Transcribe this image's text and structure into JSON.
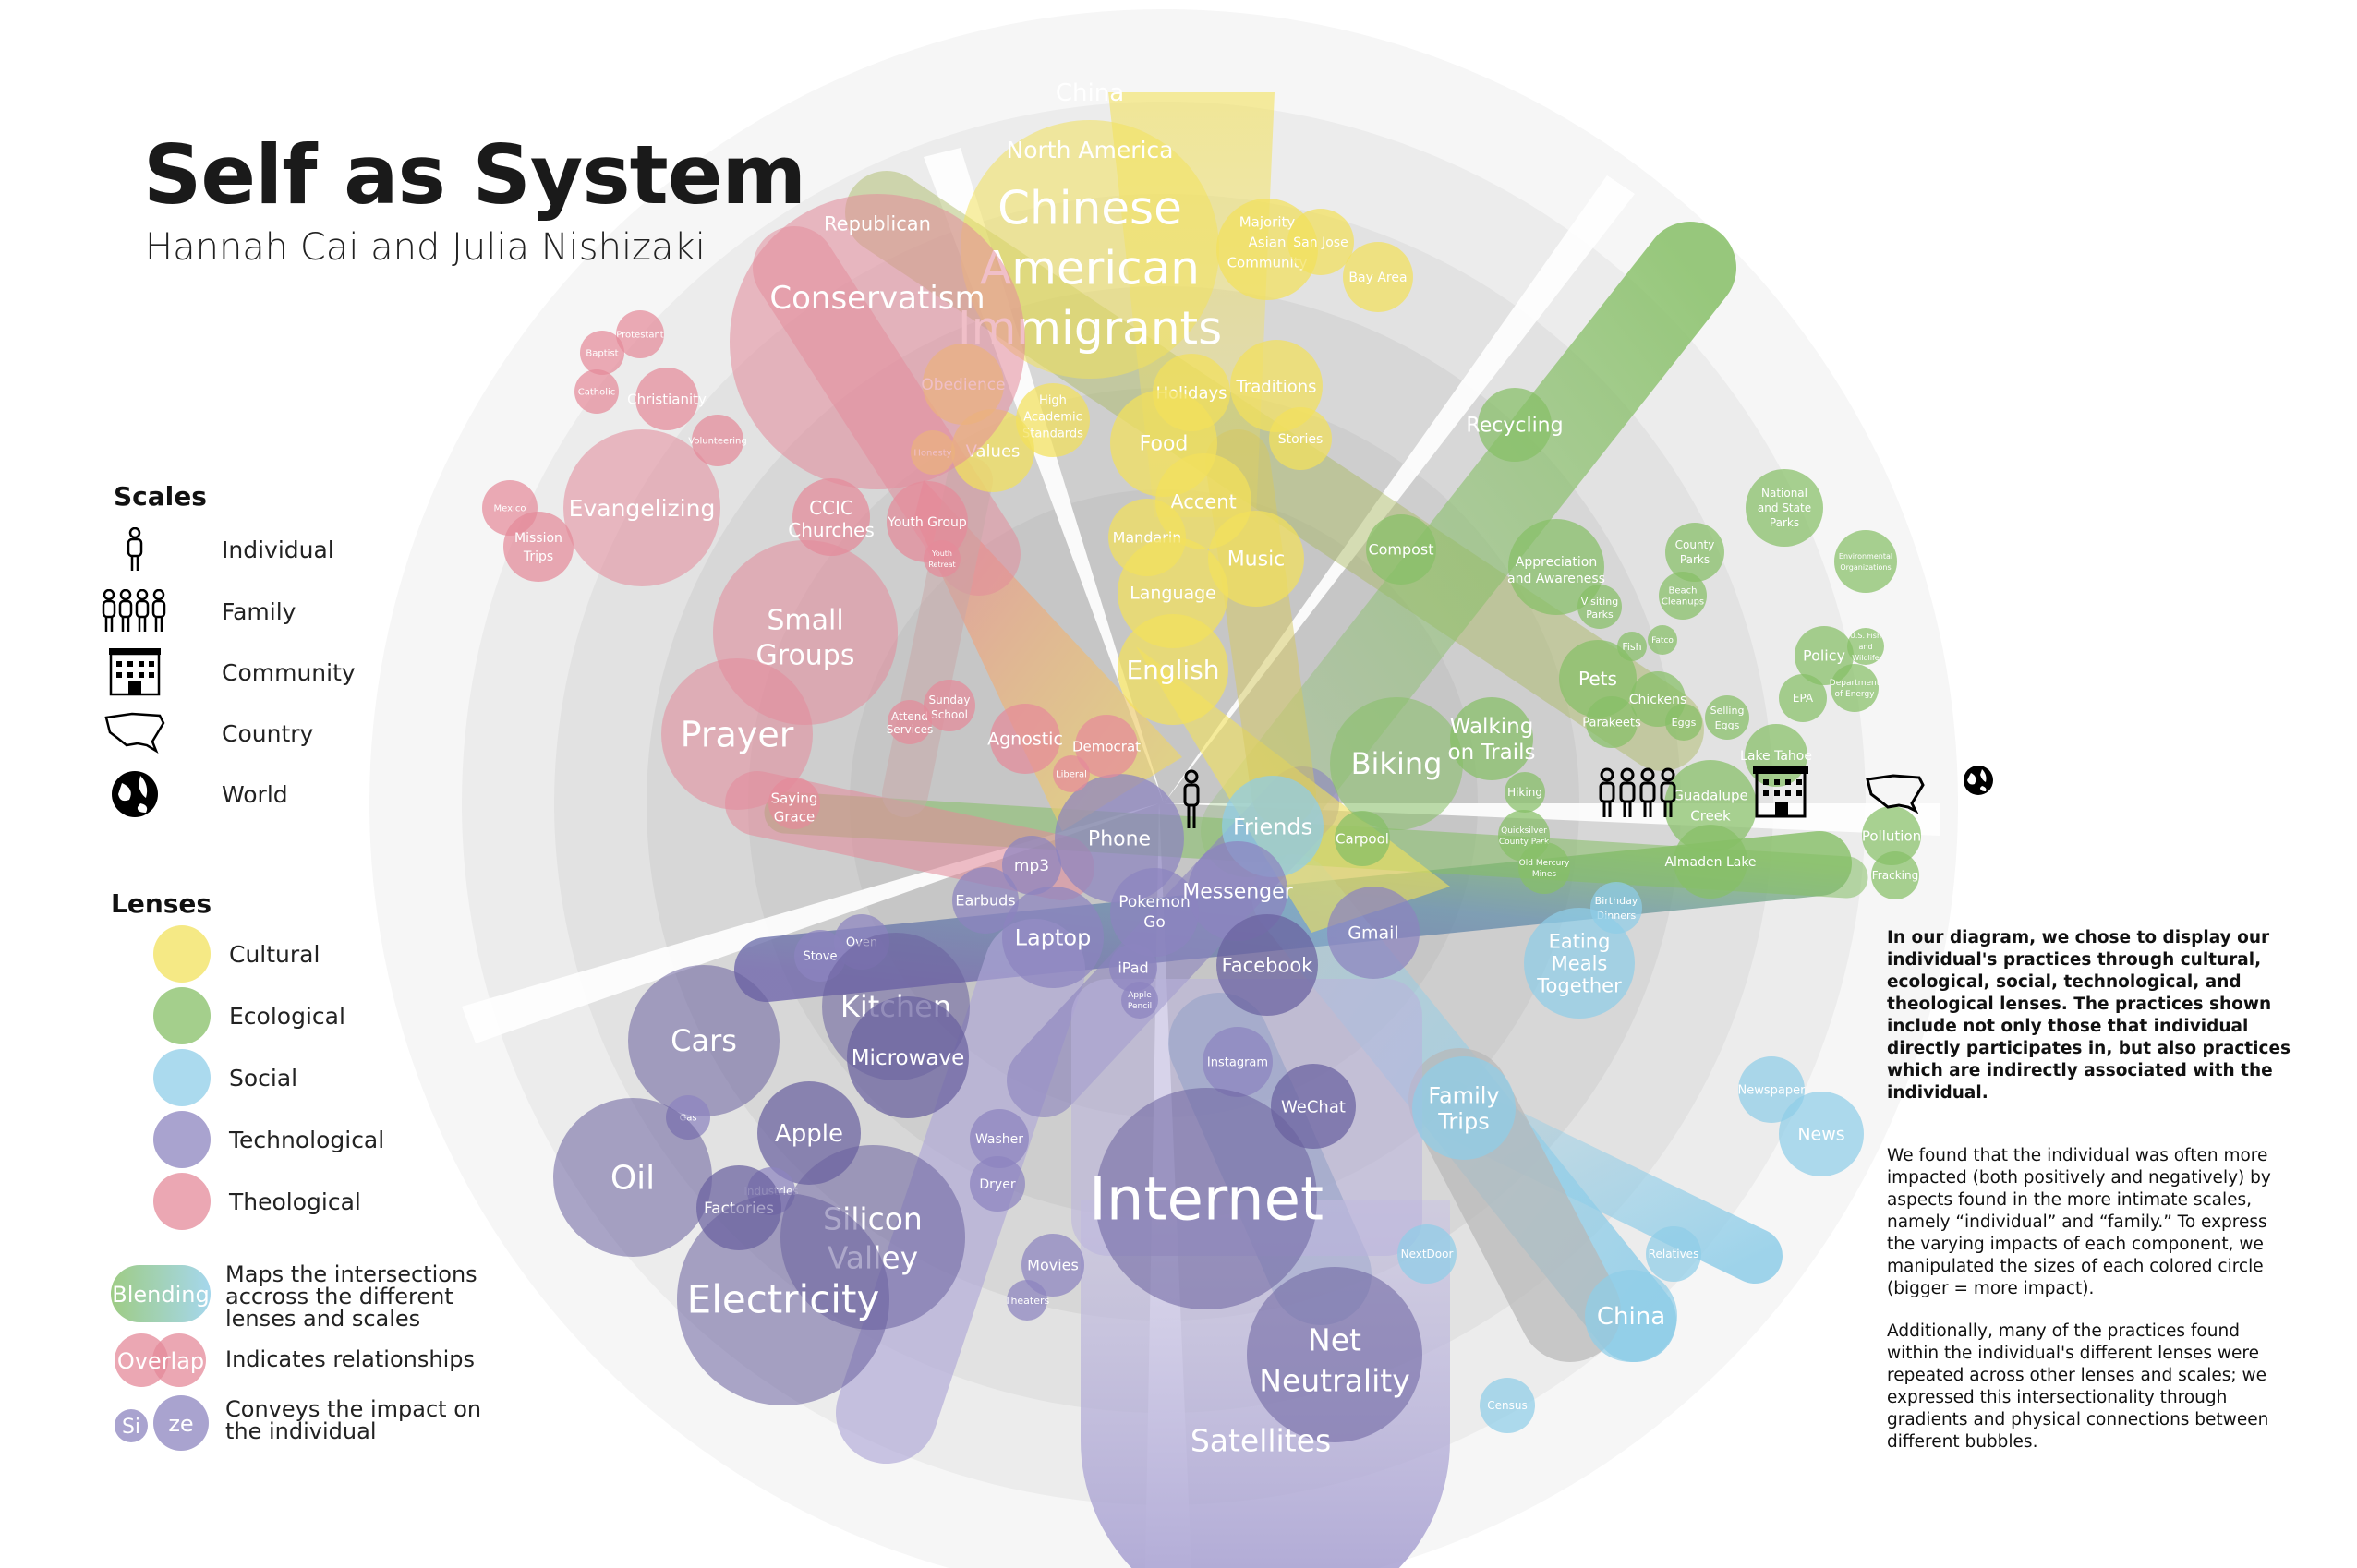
{
  "title": "Self as System",
  "authors": "Hannah Cai and Julia Nishizaki",
  "scales_heading": "Scales",
  "scales": [
    {
      "label": "Individual",
      "icon": "person-icon"
    },
    {
      "label": "Family",
      "icon": "family-icon"
    },
    {
      "label": "Community",
      "icon": "building-icon"
    },
    {
      "label": "Country",
      "icon": "usa-map-icon"
    },
    {
      "label": "World",
      "icon": "globe-icon"
    }
  ],
  "lenses_heading": "Lenses",
  "lenses": [
    {
      "label": "Cultural",
      "color": "#f2e15c"
    },
    {
      "label": "Ecological",
      "color": "#86bf66"
    },
    {
      "label": "Social",
      "color": "#8fcde8"
    },
    {
      "label": "Technological",
      "color": "#8c84bf"
    },
    {
      "label": "Theological",
      "color": "#e48a9a"
    }
  ],
  "notes": [
    {
      "sample": "Blending",
      "text": "Maps the intersections accross the different lenses and scales"
    },
    {
      "sample": "Overlap",
      "text": "Indicates relationships"
    },
    {
      "sample_a": "Si",
      "sample_b": "ze",
      "text": "Conveys the impact on the individual"
    }
  ],
  "description": {
    "p1": "In our diagram, we chose to display our individual's practices through cultural, ecological, social, technological, and theological lenses. The practices shown include not only those that individual directly participates in, but also practices which are indirectly associated with the individual.",
    "p2": "We found that the individual was often more impacted (both positively and negatively) by aspects found in the more intimate scales, namely “individual” and “family.” To express the varying impacts of each component, we manipulated the sizes of each colored circle (bigger = more impact).",
    "p3": "Additionally, many of the practices found within the individual's different lenses were repeated across other lenses and scales; we expressed this intersectionality through gradients and physical connections between different bubbles."
  },
  "colors": {
    "cultural": "#f2e15c",
    "ecological": "#86bf66",
    "social": "#8fcde8",
    "technological": "#8c84bf",
    "theological": "#e48a9a"
  },
  "bubbles": {
    "cultural": [
      "China",
      "North America",
      "Chinese",
      "American",
      "Immigrants",
      "Majority",
      "Asian",
      "Community",
      "San Jose",
      "Bay Area",
      "Obedience",
      "High",
      "Academic",
      "Standards",
      "Holidays",
      "Traditions",
      "Stories",
      "Honesty",
      "Values",
      "Food",
      "Accent",
      "Mandarin",
      "Music",
      "Language",
      "English"
    ],
    "ecological": [
      "Recycling",
      "Compost",
      "Appreciation",
      "and Awareness",
      "National",
      "and State",
      "Parks",
      "County",
      "Parks",
      "Environmental",
      "Organizations",
      "Visiting",
      "Parks",
      "Beach",
      "Cleanups",
      "Fish",
      "Fatco",
      "Policy",
      "U.S. Fish",
      "and",
      "Wildlife",
      "EPA",
      "Department",
      "of Energy",
      "Pets",
      "Chickens",
      "Parakeets",
      "Eggs",
      "Selling",
      "Eggs",
      "Lake Tahoe",
      "Biking",
      "Walking",
      "on Trails",
      "Hiking",
      "Carpool",
      "Quicksilver",
      "County Park",
      "Old Mercury",
      "Mines",
      "Guadalupe",
      "Creek",
      "Almaden Lake",
      "Pollution",
      "Fracking"
    ],
    "social": [
      "Friends",
      "Birthday",
      "Dinners",
      "Eating",
      "Meals",
      "Together",
      "Newspaper",
      "News",
      "NextDoor",
      "Relatives",
      "China",
      "Census",
      "Family",
      "Trips"
    ],
    "technological": [
      "Phone",
      "mp3",
      "Earbuds",
      "Pokemon",
      "Go",
      "Messenger",
      "Laptop",
      "Stove",
      "Oven",
      "iPad",
      "Apple",
      "Pencil",
      "Gmail",
      "Facebook",
      "Kitchen",
      "Microwave",
      "Cars",
      "Gas",
      "Apple",
      "Instagram",
      "WeChat",
      "Washer",
      "Dryer",
      "Oil",
      "Industries",
      "Factories",
      "Silicon",
      "Valley",
      "Internet",
      "Electricity",
      "Movies",
      "Theaters",
      "Net",
      "Neutrality",
      "Satellites"
    ],
    "theological": [
      "Republican",
      "Conservatism",
      "Protestant",
      "Baptist",
      "Catholic",
      "Christianity",
      "Volunteering",
      "Evangelizing",
      "Mexico",
      "Mission",
      "Trips",
      "CCIC",
      "Churches",
      "Youth Group",
      "Youth",
      "Retreat",
      "Small",
      "Groups",
      "Prayer",
      "Attend",
      "Services",
      "Sunday",
      "School",
      "Agnostic",
      "Democrat",
      "Liberal",
      "Saying",
      "Grace"
    ]
  }
}
